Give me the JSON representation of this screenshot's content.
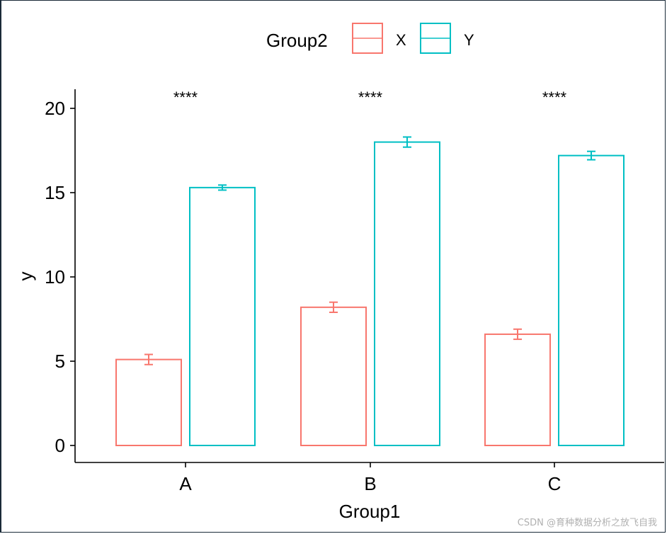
{
  "chart_data": {
    "type": "bar",
    "title": "",
    "xlabel": "Group1",
    "ylabel": "y",
    "ylim": [
      0,
      20
    ],
    "yticks": [
      0,
      5,
      10,
      15,
      20
    ],
    "categories": [
      "A",
      "B",
      "C"
    ],
    "legend": {
      "title": "Group2",
      "position": "top",
      "entries": [
        "X",
        "Y"
      ]
    },
    "series": [
      {
        "name": "X",
        "color": "#F8766D",
        "values": [
          5.1,
          8.2,
          6.6
        ],
        "errors": [
          0.3,
          0.3,
          0.3
        ]
      },
      {
        "name": "Y",
        "color": "#00BFC4",
        "values": [
          15.3,
          18.0,
          17.2
        ],
        "errors": [
          0.15,
          0.3,
          0.25
        ]
      }
    ],
    "annotations": [
      "****",
      "****",
      "****"
    ]
  },
  "watermark": "CSDN @育种数据分析之放飞自我"
}
